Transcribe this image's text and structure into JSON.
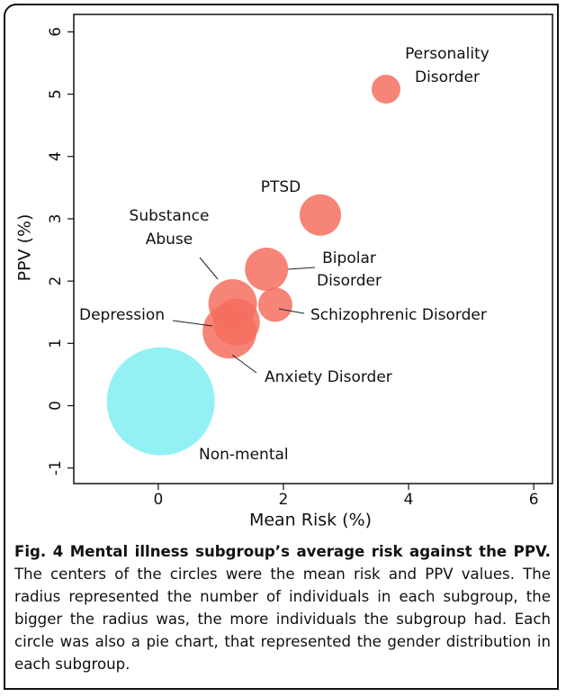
{
  "chart_data": {
    "type": "bubble",
    "xlabel": "Mean Risk (%)",
    "ylabel": "PPV (%)",
    "xlim": [
      -1.35,
      6.3
    ],
    "ylim": [
      -1.25,
      6.28
    ],
    "xticks": [
      0,
      2,
      4,
      6
    ],
    "yticks": [
      -1,
      0,
      1,
      2,
      3,
      4,
      5,
      6
    ],
    "points": [
      {
        "label": [
          "Non-mental"
        ],
        "x": 0.04,
        "y": 0.07,
        "size": 60,
        "color": "#80eef2"
      },
      {
        "label": [
          "Depression"
        ],
        "x": 1.14,
        "y": 1.19,
        "size": 30,
        "color": "#f46e5f"
      },
      {
        "label": [
          "Substance",
          "Abuse"
        ],
        "x": 1.19,
        "y": 1.64,
        "size": 27,
        "color": "#f46e5f"
      },
      {
        "label": [
          "Anxiety Disorder"
        ],
        "x": 1.25,
        "y": 1.34,
        "size": 26,
        "color": "#f46e5f"
      },
      {
        "label": [
          "Schizophrenic Disorder"
        ],
        "x": 1.87,
        "y": 1.62,
        "size": 19,
        "color": "#f46e5f"
      },
      {
        "label": [
          "Bipolar",
          "Disorder"
        ],
        "x": 1.73,
        "y": 2.19,
        "size": 24,
        "color": "#f46e5f"
      },
      {
        "label": [
          "PTSD"
        ],
        "x": 2.59,
        "y": 3.06,
        "size": 23,
        "color": "#f46e5f"
      },
      {
        "label": [
          "Personality",
          "Disorder"
        ],
        "x": 3.64,
        "y": 5.08,
        "size": 16,
        "color": "#f46e5f"
      }
    ]
  },
  "caption": {
    "title": "Fig. 4 Mental illness subgroup’s average risk against the PPV.",
    "text": "The centers of the circles were the mean risk and PPV values. The radius represented the number of individuals in each subgroup, the bigger the radius was, the more individuals the subgroup had. Each circle was also a pie chart, that represented the gender distribution in each subgroup."
  }
}
